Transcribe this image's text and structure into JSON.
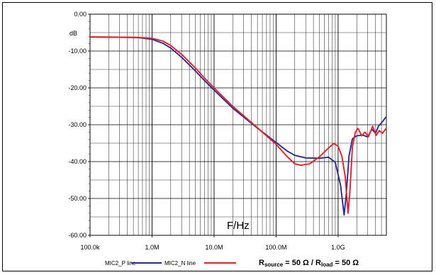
{
  "chart_data": {
    "type": "line",
    "xscale": "log",
    "xlim": [
      100000,
      6000000000
    ],
    "ylim": [
      -60,
      0
    ],
    "ylabel": "dB",
    "xlabel": "F/Hz",
    "grid": true,
    "xticks": [
      {
        "value": 100000,
        "label": "100.0k"
      },
      {
        "value": 1000000,
        "label": "1.0M"
      },
      {
        "value": 10000000,
        "label": "10.0M"
      },
      {
        "value": 100000000,
        "label": "100.0M"
      },
      {
        "value": 1000000000,
        "label": "1.0G"
      }
    ],
    "yticks": [
      {
        "value": 0,
        "label": "0.00"
      },
      {
        "value": -10,
        "label": "-10.00"
      },
      {
        "value": -20,
        "label": "-20.00"
      },
      {
        "value": -30,
        "label": "-30.00"
      },
      {
        "value": -40,
        "label": "-40.00"
      },
      {
        "value": -50,
        "label": "-50.00"
      },
      {
        "value": -60,
        "label": "-60.00"
      }
    ],
    "series": [
      {
        "name": "MIC2_P line",
        "color": "#2b2b8c",
        "points": [
          [
            100000,
            -6.2
          ],
          [
            300000,
            -6.25
          ],
          [
            600000,
            -6.35
          ],
          [
            1000000,
            -6.8
          ],
          [
            1500000,
            -7.9
          ],
          [
            2000000,
            -9.2
          ],
          [
            3000000,
            -11.7
          ],
          [
            5000000,
            -15.4
          ],
          [
            7000000,
            -18.0
          ],
          [
            10000000,
            -20.6
          ],
          [
            20000000,
            -25.5
          ],
          [
            50000000,
            -30.9
          ],
          [
            100000000,
            -34.8
          ],
          [
            150000000,
            -37.1
          ],
          [
            200000000,
            -38.3
          ],
          [
            300000000,
            -39.0
          ],
          [
            500000000,
            -39.1
          ],
          [
            700000000,
            -38.8
          ],
          [
            900000000,
            -40.2
          ],
          [
            1100000000,
            -46.5
          ],
          [
            1250000000,
            -54.5
          ],
          [
            1350000000,
            -49.0
          ],
          [
            1500000000,
            -38.5
          ],
          [
            1700000000,
            -33.8
          ],
          [
            2000000000,
            -33.0
          ],
          [
            2500000000,
            -32.8
          ],
          [
            3000000000,
            -33.3
          ],
          [
            3500000000,
            -31.2
          ],
          [
            4000000000,
            -32.3
          ],
          [
            4500000000,
            -30.3
          ],
          [
            5000000000,
            -29.5
          ],
          [
            5500000000,
            -28.6
          ],
          [
            6000000000,
            -27.8
          ]
        ]
      },
      {
        "name": "MIC2_N line",
        "color": "#e0202a",
        "points": [
          [
            100000,
            -6.2
          ],
          [
            300000,
            -6.25
          ],
          [
            600000,
            -6.3
          ],
          [
            1000000,
            -6.55
          ],
          [
            1500000,
            -7.3
          ],
          [
            2000000,
            -8.5
          ],
          [
            3000000,
            -10.9
          ],
          [
            5000000,
            -14.6
          ],
          [
            7000000,
            -17.3
          ],
          [
            10000000,
            -20.0
          ],
          [
            20000000,
            -25.0
          ],
          [
            50000000,
            -30.8
          ],
          [
            100000000,
            -35.3
          ],
          [
            150000000,
            -38.6
          ],
          [
            200000000,
            -40.6
          ],
          [
            250000000,
            -41.0
          ],
          [
            350000000,
            -40.6
          ],
          [
            500000000,
            -38.7
          ],
          [
            700000000,
            -36.3
          ],
          [
            850000000,
            -35.1
          ],
          [
            1000000000,
            -35.8
          ],
          [
            1150000000,
            -38.5
          ],
          [
            1300000000,
            -44.0
          ],
          [
            1450000000,
            -54.0
          ],
          [
            1550000000,
            -48.0
          ],
          [
            1700000000,
            -36.0
          ],
          [
            1900000000,
            -32.0
          ],
          [
            2100000000,
            -31.0
          ],
          [
            2400000000,
            -33.0
          ],
          [
            2700000000,
            -32.0
          ],
          [
            3100000000,
            -33.2
          ],
          [
            3600000000,
            -30.4
          ],
          [
            4100000000,
            -32.9
          ],
          [
            4600000000,
            -31.6
          ],
          [
            5200000000,
            -32.3
          ],
          [
            6000000000,
            -30.9
          ]
        ]
      }
    ]
  },
  "legend": {
    "items": [
      "MIC2_P line",
      "MIC2_N line"
    ],
    "equation": {
      "r1": "R",
      "r1_sub": "source",
      "mid": " = 50 Ω / ",
      "r2": "R",
      "r2_sub": "load",
      "end": " = 50 Ω"
    }
  }
}
